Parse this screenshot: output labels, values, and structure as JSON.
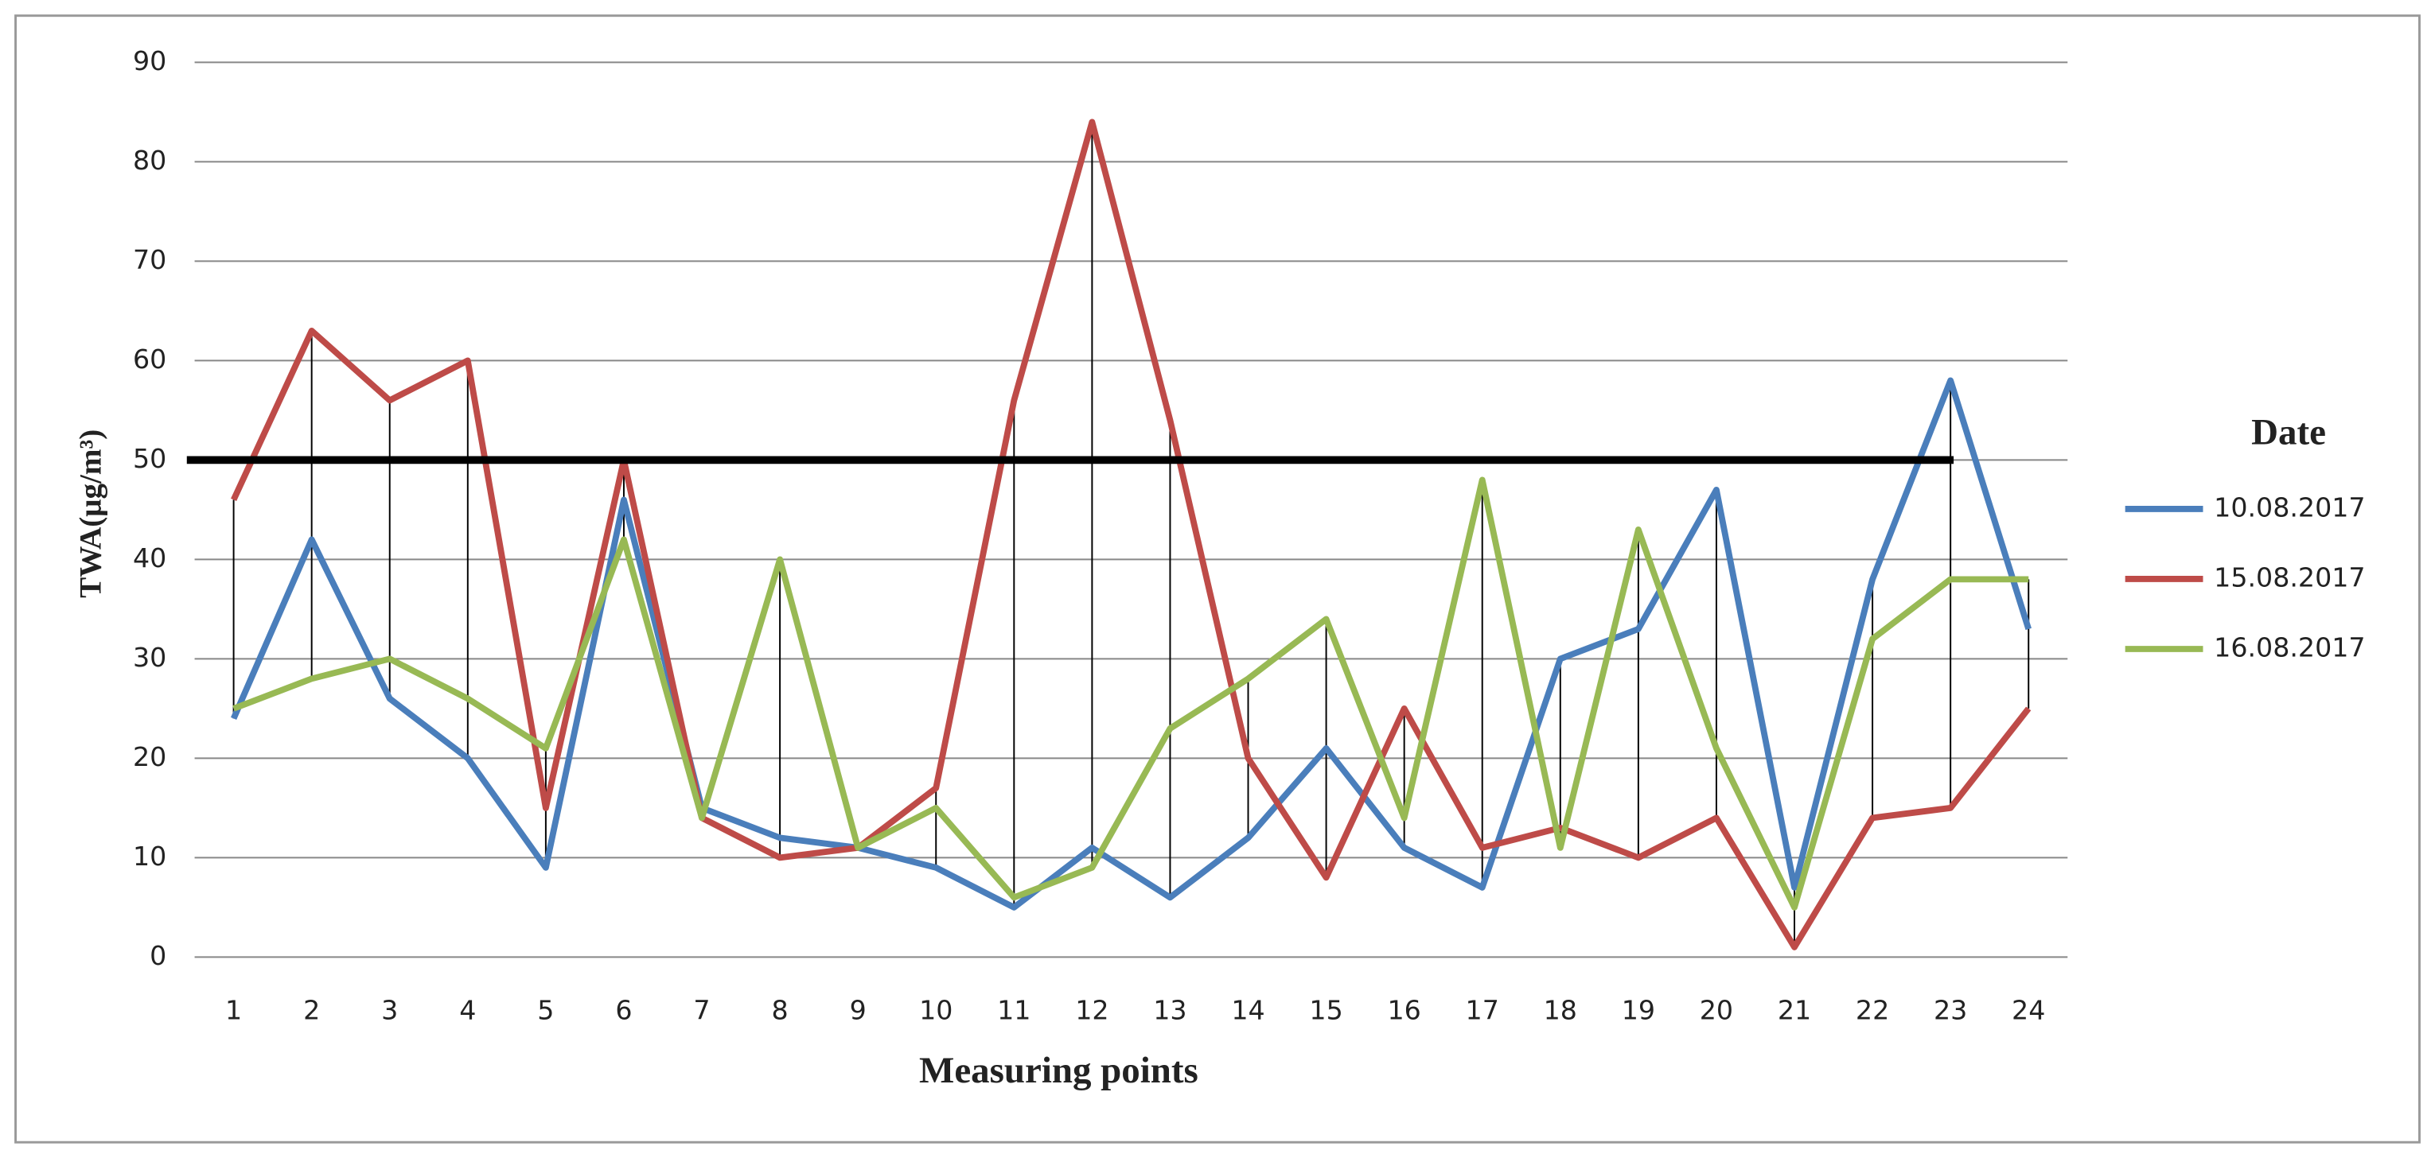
{
  "chart_data": {
    "type": "line",
    "x_label": "Measuring points",
    "y_label": "TWA(μg/m³)",
    "legend_title": "Date",
    "legend": "right",
    "grid": true,
    "categories": [
      "1",
      "2",
      "3",
      "4",
      "5",
      "6",
      "7",
      "8",
      "9",
      "10",
      "11",
      "12",
      "13",
      "14",
      "15",
      "16",
      "17",
      "18",
      "19",
      "20",
      "21",
      "22",
      "23",
      "24"
    ],
    "series": [
      {
        "name": "10.08.2017",
        "color": "#4a7ebb",
        "values": [
          24,
          42,
          26,
          20,
          9,
          46,
          15,
          12,
          11,
          9,
          5,
          11,
          6,
          12,
          21,
          11,
          7,
          30,
          33,
          47,
          7,
          38,
          58,
          33
        ]
      },
      {
        "name": "15.08.2017",
        "color": "#be4b48",
        "values": [
          46,
          63,
          56,
          60,
          15,
          50,
          14,
          10,
          11,
          17,
          56,
          84,
          54,
          20,
          8,
          25,
          11,
          13,
          10,
          14,
          1,
          14,
          15,
          25
        ]
      },
      {
        "name": "16.08.2017",
        "color": "#98b954",
        "values": [
          25,
          28,
          30,
          26,
          21,
          42,
          14,
          40,
          11,
          15,
          6,
          9,
          23,
          28,
          34,
          14,
          48,
          11,
          43,
          21,
          5,
          32,
          38,
          38
        ]
      }
    ],
    "reference_line": {
      "value": 50,
      "color": "#000000"
    },
    "ylim": [
      0,
      90
    ],
    "yticks": [
      0,
      10,
      20,
      30,
      40,
      50,
      60,
      70,
      80,
      90
    ]
  }
}
